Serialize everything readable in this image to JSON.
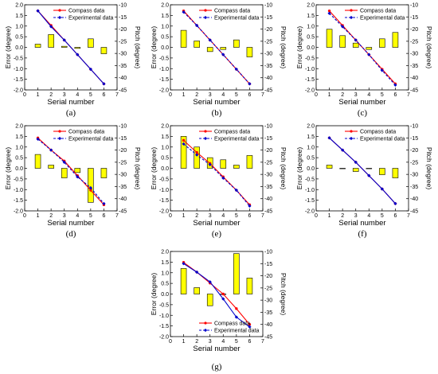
{
  "figure": {
    "panels": [
      {
        "id": "a",
        "caption": "(a)"
      },
      {
        "id": "b",
        "caption": "(b)"
      },
      {
        "id": "c",
        "caption": "(c)"
      },
      {
        "id": "d",
        "caption": "(d)"
      },
      {
        "id": "e",
        "caption": "(e)"
      },
      {
        "id": "f",
        "caption": "(f)"
      },
      {
        "id": "g",
        "caption": "(g)"
      }
    ]
  },
  "colors": {
    "bar_fill": "#ffff00",
    "bar_stroke": "#000000",
    "compass": "#ff0000",
    "experimental": "#0000cc"
  },
  "chart_data": [
    {
      "panel": "a",
      "type": "bar",
      "xlabel": "Serial number",
      "ylabel": "Error (degree)",
      "y2label": "Pitch (degree)",
      "xlim": [
        0,
        7
      ],
      "ylim": [
        -2.0,
        2.0
      ],
      "y2lim": [
        -45,
        -10
      ],
      "xticks": [
        0,
        1,
        2,
        3,
        4,
        5,
        6,
        7
      ],
      "yticks": [
        "-2.0",
        "-1.5",
        "-1.0",
        "-0.5",
        "0.0",
        "0.5",
        "1.0",
        "1.5",
        "2.0"
      ],
      "y2ticks": [
        -45,
        -40,
        -35,
        -30,
        -25,
        -20,
        -15,
        -10
      ],
      "legend_position": "top-right",
      "x": [
        1,
        2,
        3,
        4,
        5,
        6
      ],
      "bars": [
        0.15,
        0.6,
        0.05,
        -0.05,
        0.4,
        -0.3
      ],
      "series": [
        {
          "name": "Compass data",
          "values": [
            -12.5,
            -18.5,
            -24.5,
            -30.5,
            -36.5,
            -42.5
          ]
        },
        {
          "name": "Experimental data",
          "values": [
            -12.5,
            -19.0,
            -24.5,
            -30.5,
            -36.5,
            -42.5
          ]
        }
      ]
    },
    {
      "panel": "b",
      "type": "bar",
      "xlabel": "Serial number",
      "ylabel": "Error (degree)",
      "y2label": "Pitch (degree)",
      "xlim": [
        0,
        7
      ],
      "ylim": [
        -2.0,
        2.0
      ],
      "y2lim": [
        -45,
        -10
      ],
      "xticks": [
        0,
        1,
        2,
        3,
        4,
        5,
        6,
        7
      ],
      "yticks": [
        "-2.0",
        "-1.5",
        "-1.0",
        "-0.5",
        "0.0",
        "0.5",
        "1.0",
        "1.5",
        "2.0"
      ],
      "y2ticks": [
        -45,
        -40,
        -35,
        -30,
        -25,
        -20,
        -15,
        -10
      ],
      "legend_position": "top-right",
      "x": [
        1,
        2,
        3,
        4,
        5,
        6
      ],
      "bars": [
        0.8,
        0.3,
        -0.2,
        -0.1,
        0.35,
        -0.45
      ],
      "series": [
        {
          "name": "Compass data",
          "values": [
            -12.5,
            -18.5,
            -24.5,
            -30.5,
            -36.5,
            -42.5
          ]
        },
        {
          "name": "Experimental data",
          "values": [
            -13.0,
            -18.5,
            -24.5,
            -30.5,
            -36.5,
            -42.5
          ]
        }
      ]
    },
    {
      "panel": "c",
      "type": "bar",
      "xlabel": "Serial number",
      "ylabel": "Error (degree)",
      "y2label": "Pitch (degree)",
      "xlim": [
        0,
        7
      ],
      "ylim": [
        -2.0,
        2.0
      ],
      "y2lim": [
        -45,
        -10
      ],
      "xticks": [
        0,
        1,
        2,
        3,
        4,
        5,
        6,
        7
      ],
      "yticks": [
        "-2.0",
        "-1.5",
        "-1.0",
        "-0.5",
        "0.0",
        "0.5",
        "1.0",
        "1.5",
        "2.0"
      ],
      "y2ticks": [
        -45,
        -40,
        -35,
        -30,
        -25,
        -20,
        -15,
        -10
      ],
      "legend_position": "top-right",
      "x": [
        1,
        2,
        3,
        4,
        5,
        6
      ],
      "bars": [
        0.85,
        0.55,
        0.2,
        -0.1,
        0.4,
        0.7
      ],
      "series": [
        {
          "name": "Compass data",
          "values": [
            -12.5,
            -18.5,
            -24.5,
            -30.5,
            -36.5,
            -42.5
          ]
        },
        {
          "name": "Experimental data",
          "values": [
            -13.5,
            -19.0,
            -24.5,
            -30.5,
            -37.0,
            -43.0
          ]
        }
      ]
    },
    {
      "panel": "d",
      "type": "bar",
      "xlabel": "Serial number",
      "ylabel": "Error (degree)",
      "y2label": "Pitch (degree)",
      "xlim": [
        0,
        7
      ],
      "ylim": [
        -2.0,
        2.0
      ],
      "y2lim": [
        -45,
        -10
      ],
      "xticks": [
        0,
        1,
        2,
        3,
        4,
        5,
        6,
        7
      ],
      "yticks": [
        "-2.0",
        "-1.5",
        "-1.0",
        "-0.5",
        "0.0",
        "0.5",
        "1.0",
        "1.5",
        "2.0"
      ],
      "y2ticks": [
        -45,
        -40,
        -35,
        -30,
        -25,
        -20,
        -15,
        -10
      ],
      "legend_position": "top-right",
      "x": [
        1,
        2,
        3,
        4,
        5,
        6
      ],
      "bars": [
        0.65,
        0.15,
        -0.45,
        -0.2,
        -1.6,
        -0.45
      ],
      "series": [
        {
          "name": "Compass data",
          "values": [
            -15.0,
            -20.0,
            -24.5,
            -30.5,
            -36.5,
            -42.5
          ]
        },
        {
          "name": "Experimental data",
          "values": [
            -15.5,
            -20.0,
            -25.0,
            -31.0,
            -35.5,
            -42.0
          ]
        }
      ]
    },
    {
      "panel": "e",
      "type": "bar",
      "xlabel": "Serial number",
      "ylabel": "Error (degree)",
      "y2label": "Pitch (degree)",
      "xlim": [
        0,
        7
      ],
      "ylim": [
        -2.0,
        2.0
      ],
      "y2lim": [
        -45,
        -10
      ],
      "xticks": [
        0,
        1,
        2,
        3,
        4,
        5,
        6,
        7
      ],
      "yticks": [
        "-2.0",
        "-1.5",
        "-1.0",
        "-0.5",
        "0.0",
        "0.5",
        "1.0",
        "1.5",
        "2.0"
      ],
      "y2ticks": [
        -45,
        -40,
        -35,
        -30,
        -25,
        -20,
        -15,
        -10
      ],
      "legend_position": "top-right",
      "x": [
        1,
        2,
        3,
        4,
        5,
        6
      ],
      "bars": [
        1.5,
        1.0,
        0.5,
        0.4,
        0.15,
        0.6
      ],
      "series": [
        {
          "name": "Compass data",
          "values": [
            -16.0,
            -21.0,
            -25.5,
            -31.0,
            -36.5,
            -42.5
          ]
        },
        {
          "name": "Experimental data",
          "values": [
            -17.5,
            -22.0,
            -26.0,
            -31.5,
            -36.5,
            -43.0
          ]
        }
      ]
    },
    {
      "panel": "f",
      "type": "bar",
      "xlabel": "Serial number",
      "ylabel": "Error (degree)",
      "y2label": "Pitch (degree)",
      "xlim": [
        0,
        7
      ],
      "ylim": [
        -2.0,
        2.0
      ],
      "y2lim": [
        -45,
        -10
      ],
      "xticks": [
        0,
        1,
        2,
        3,
        4,
        5,
        6,
        7
      ],
      "yticks": [
        "-2.0",
        "-1.5",
        "-1.0",
        "-0.5",
        "0.0",
        "0.5",
        "1.0",
        "1.5",
        "2.0"
      ],
      "y2ticks": [
        -45,
        -40,
        -35,
        -30,
        -25,
        -20,
        -15,
        -10
      ],
      "legend_position": "top-right",
      "x": [
        1,
        2,
        3,
        4,
        5,
        6
      ],
      "bars": [
        0.15,
        0.0,
        -0.15,
        0.0,
        -0.3,
        -0.45
      ],
      "series": [
        {
          "name": "Compass data",
          "values": [
            -15.0,
            -20.0,
            -25.0,
            -30.5,
            -36.0,
            -42.0
          ]
        },
        {
          "name": "Experimental data",
          "values": [
            -15.0,
            -20.0,
            -25.0,
            -30.5,
            -36.0,
            -42.0
          ]
        }
      ]
    },
    {
      "panel": "g",
      "type": "bar",
      "xlabel": "Serial number",
      "ylabel": "Error (degree)",
      "y2label": "Pitch (degree)",
      "xlim": [
        0,
        7
      ],
      "ylim": [
        -2.0,
        2.0
      ],
      "y2lim": [
        -45,
        -10
      ],
      "xticks": [
        0,
        1,
        2,
        3,
        4,
        5,
        6,
        7
      ],
      "yticks": [
        "-2.0",
        "-1.5",
        "-1.0",
        "-0.5",
        "0.0",
        "0.5",
        "1.0",
        "1.5",
        "2.0"
      ],
      "y2ticks": [
        -45,
        -40,
        -35,
        -30,
        -25,
        -20,
        -15,
        -10
      ],
      "legend_position": "bottom-right",
      "x": [
        1,
        2,
        3,
        4,
        5,
        6
      ],
      "bars": [
        1.2,
        0.3,
        -0.55,
        0.0,
        1.9,
        0.75
      ],
      "series": [
        {
          "name": "Compass data",
          "values": [
            -14.5,
            -18.5,
            -23.0,
            -27.5,
            -33.5,
            -40.0
          ]
        },
        {
          "name": "Experimental data",
          "values": [
            -15.0,
            -18.5,
            -22.5,
            -29.5,
            -37.0,
            -41.0
          ]
        }
      ]
    }
  ]
}
